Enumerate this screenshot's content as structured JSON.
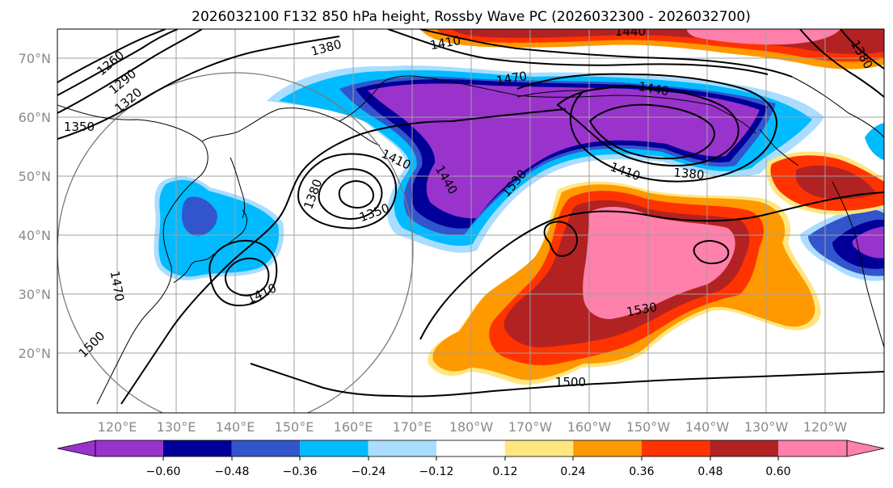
{
  "title": "2026032100 F132 850 hPa height, Rossby Wave PC (2026032300 - 2026032700)",
  "map": {
    "lat_labels": [
      "70°N",
      "60°N",
      "50°N",
      "40°N",
      "30°N",
      "20°N"
    ],
    "lon_labels": [
      "120°E",
      "130°E",
      "140°E",
      "150°E",
      "160°E",
      "170°E",
      "180°W",
      "170°W",
      "160°W",
      "150°W",
      "140°W",
      "130°W",
      "120°W"
    ],
    "height_contour_labels": [
      {
        "text": "1260",
        "name": "contour-label-1260"
      },
      {
        "text": "1290",
        "name": "contour-label-1290"
      },
      {
        "text": "1320",
        "name": "contour-label-1320"
      },
      {
        "text": "1350",
        "name": "contour-label-1350-west"
      },
      {
        "text": "1380",
        "name": "contour-label-1380-north"
      },
      {
        "text": "1410",
        "name": "contour-label-1410-north"
      },
      {
        "text": "1440",
        "name": "contour-label-1440-top"
      },
      {
        "text": "1470",
        "name": "contour-label-1470"
      },
      {
        "text": "1440",
        "name": "contour-label-1440-alaska"
      },
      {
        "text": "1410",
        "name": "contour-label-1410-alaska"
      },
      {
        "text": "1380",
        "name": "contour-label-1380-alaska"
      },
      {
        "text": "1410",
        "name": "contour-label-1410-kamchatka"
      },
      {
        "text": "1380",
        "name": "contour-label-1380-low"
      },
      {
        "text": "1350",
        "name": "contour-label-1350-low"
      },
      {
        "text": "1440",
        "name": "contour-label-1440-trough"
      },
      {
        "text": "1530",
        "name": "contour-label-1530-trough"
      },
      {
        "text": "1410",
        "name": "contour-label-1410-japan"
      },
      {
        "text": "1470",
        "name": "contour-label-1470-china"
      },
      {
        "text": "1500",
        "name": "contour-label-1500-west"
      },
      {
        "text": "1530",
        "name": "contour-label-1530-east"
      },
      {
        "text": "1500",
        "name": "contour-label-1500-south"
      },
      {
        "text": "1380",
        "name": "contour-label-1380-arctic"
      }
    ]
  },
  "colorbar": {
    "tick_labels": [
      "−0.60",
      "−0.48",
      "−0.36",
      "−0.24",
      "−0.12",
      "0.12",
      "0.24",
      "0.36",
      "0.48",
      "0.60"
    ],
    "levels": [
      -0.6,
      -0.48,
      -0.36,
      -0.24,
      -0.12,
      0.12,
      0.24,
      0.36,
      0.48,
      0.6
    ],
    "colors": [
      "#9933cc",
      "#000099",
      "#3355cc",
      "#00bbff",
      "#aaddff",
      "#ffffff",
      "#ffe680",
      "#ff9900",
      "#ff3300",
      "#b22222",
      "#ff80aa"
    ]
  }
}
